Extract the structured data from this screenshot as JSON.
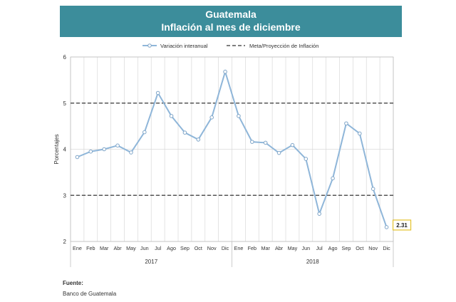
{
  "header": {
    "title": "Guatemala",
    "subtitle": "Inflación al mes de diciembre"
  },
  "chart_data": {
    "type": "line",
    "ylabel": "Porcentajes",
    "ylim": [
      2,
      6
    ],
    "yticks": [
      2,
      3,
      4,
      5,
      6
    ],
    "grid": true,
    "legend_position": "top",
    "categories": [
      "Ene",
      "Feb",
      "Mar",
      "Abr",
      "May",
      "Jun",
      "Jul",
      "Ago",
      "Sep",
      "Oct",
      "Nov",
      "Dic",
      "Ene",
      "Feb",
      "Mar",
      "Abr",
      "May",
      "Jun",
      "Jul",
      "Ago",
      "Sep",
      "Oct",
      "Nov",
      "Dic"
    ],
    "groups": [
      {
        "label": "2017",
        "start": 0,
        "end": 11
      },
      {
        "label": "2018",
        "start": 12,
        "end": 23
      }
    ],
    "series": [
      {
        "name": "Variación interanual",
        "color": "#8fb6d9",
        "values": [
          3.83,
          3.95,
          4.0,
          4.08,
          3.93,
          4.37,
          5.22,
          4.72,
          4.36,
          4.21,
          4.69,
          5.68,
          4.72,
          4.16,
          4.14,
          3.92,
          4.09,
          3.79,
          2.6,
          3.37,
          4.56,
          4.34,
          3.14,
          2.31
        ]
      }
    ],
    "reference": {
      "name": "Meta/Proyección de Inflación",
      "color": "#555555",
      "values": [
        3,
        5
      ]
    },
    "annotation": {
      "text": "2.31",
      "index": 23
    }
  },
  "source": {
    "label": "Fuente:",
    "value": "Banco de Guatemala"
  }
}
